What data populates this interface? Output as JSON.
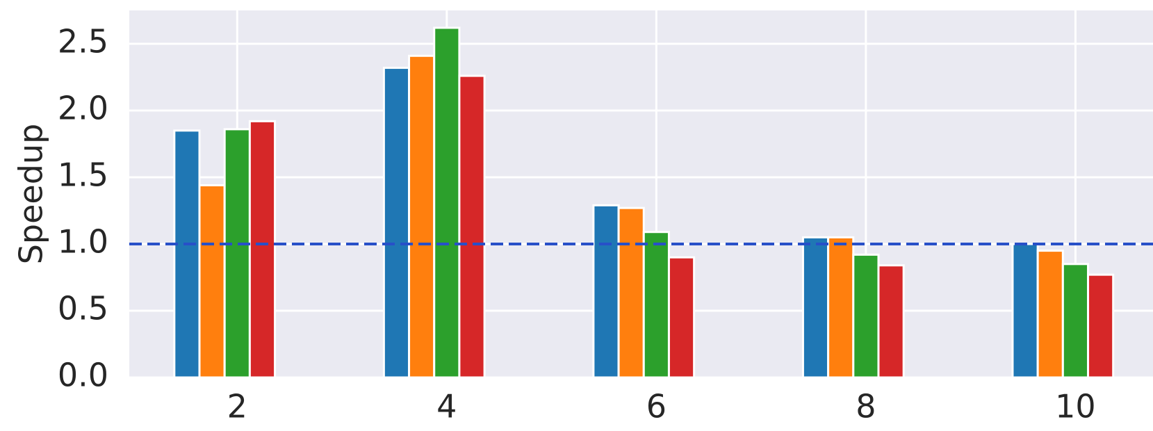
{
  "chart_data": {
    "type": "bar",
    "y_label": "Speedup",
    "x": [
      2,
      4,
      6,
      8,
      10
    ],
    "series": [
      {
        "color": "#1f77b4",
        "values": [
          1.85,
          2.32,
          1.29,
          1.05,
          1.0
        ]
      },
      {
        "color": "#ff7f0e",
        "values": [
          1.44,
          2.41,
          1.27,
          1.05,
          0.95
        ]
      },
      {
        "color": "#2ca02c",
        "values": [
          1.86,
          2.62,
          1.09,
          0.92,
          0.85
        ]
      },
      {
        "color": "#d62728",
        "values": [
          1.92,
          2.26,
          0.9,
          0.84,
          0.77
        ]
      }
    ],
    "xlim": [
      0.97,
      10.74
    ],
    "xticks": [
      2,
      4,
      6,
      8,
      10
    ],
    "ylim": [
      0,
      2.75
    ],
    "yticks": [
      {
        "value": 0,
        "label": "0.0"
      },
      0.5,
      {
        "value": 1,
        "label": "1.0"
      },
      1.5,
      {
        "value": 2,
        "label": "2.0"
      },
      2.5
    ],
    "grid": true,
    "background": "#eaeaf2",
    "hline": {
      "value": 1.0,
      "color": "#2850c8",
      "style": "dashed"
    }
  }
}
